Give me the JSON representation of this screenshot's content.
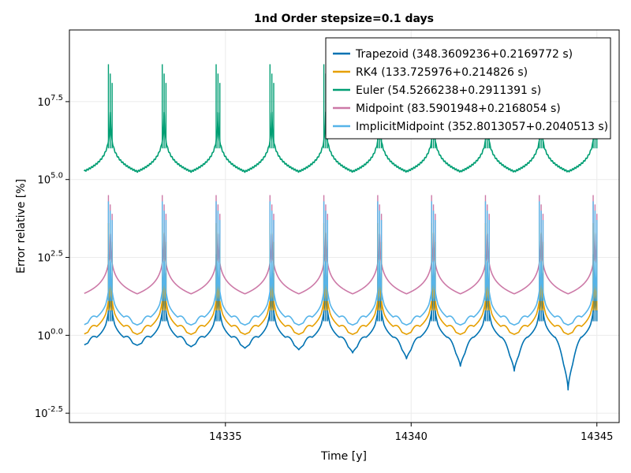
{
  "chart_data": {
    "type": "line",
    "title": "1nd Order stepsize=0.1 days",
    "xlabel": "Time [y]",
    "ylabel": "Error relative [%]",
    "y_scale": "log10",
    "xlim": [
      14330.8,
      14345.6
    ],
    "ylim_log10": [
      -2.8,
      9.8
    ],
    "x_ticks": [
      14335,
      14340,
      14345
    ],
    "x_tick_labels": [
      "14335",
      "14340",
      "14345"
    ],
    "y_ticks_log10": [
      -2.5,
      0.0,
      2.5,
      5.0,
      7.5
    ],
    "y_tick_labels": [
      {
        "base": "10",
        "exp": "-2.5"
      },
      {
        "base": "10",
        "exp": "0.0"
      },
      {
        "base": "10",
        "exp": "2.5"
      },
      {
        "base": "10",
        "exp": "5.0"
      },
      {
        "base": "10",
        "exp": "7.5"
      }
    ],
    "grid": true,
    "legend_position": "top-right",
    "x_start": 14331.2,
    "x_end": 14345.0,
    "period_y": 1.45,
    "peak_times": [
      14331.9,
      14333.35,
      14334.8,
      14336.25,
      14337.7,
      14339.15,
      14340.6,
      14342.05,
      14343.5,
      14344.95
    ],
    "series": [
      {
        "name": "Trapezoid (348.3609236+0.2169772 s)",
        "color": "#0072b2",
        "base_log10": -0.75,
        "peak_log10": 2.6,
        "min_log10": [
          -0.75,
          -0.8,
          -0.85,
          -0.9,
          -1.0,
          -1.2,
          -1.45,
          -1.6,
          -2.2,
          -1.1
        ]
      },
      {
        "name": "RK4 (133.725976+0.214826 s)",
        "color": "#e69f00",
        "base_log10": -0.4,
        "peak_log10": 3.6,
        "min_log10": [
          -0.4,
          -0.4,
          -0.4,
          -0.4,
          -0.4,
          -0.4,
          -0.4,
          -0.4,
          -0.4,
          -0.4
        ]
      },
      {
        "name": "Euler (54.5266238+0.2911391 s)",
        "color": "#009e73",
        "base_log10": 4.8,
        "peak_log10": 8.7,
        "min_log10": [
          4.8,
          4.8,
          4.8,
          4.8,
          4.8,
          4.8,
          4.8,
          4.8,
          4.8,
          4.8
        ]
      },
      {
        "name": "Midpoint (83.5901948+0.2168054 s)",
        "color": "#cc79a7",
        "base_log10": 0.9,
        "peak_log10": 4.5,
        "min_log10": [
          0.9,
          0.9,
          0.9,
          0.9,
          0.9,
          0.9,
          0.9,
          0.9,
          0.9,
          0.9
        ]
      },
      {
        "name": "ImplicitMidpoint (352.8013057+0.2040513 s)",
        "color": "#56b4e9",
        "base_log10": -0.1,
        "peak_log10": 4.3,
        "min_log10": [
          -0.1,
          -0.1,
          -0.1,
          -0.1,
          -0.1,
          -0.1,
          -0.1,
          -0.1,
          -0.1,
          -0.1
        ]
      }
    ]
  }
}
